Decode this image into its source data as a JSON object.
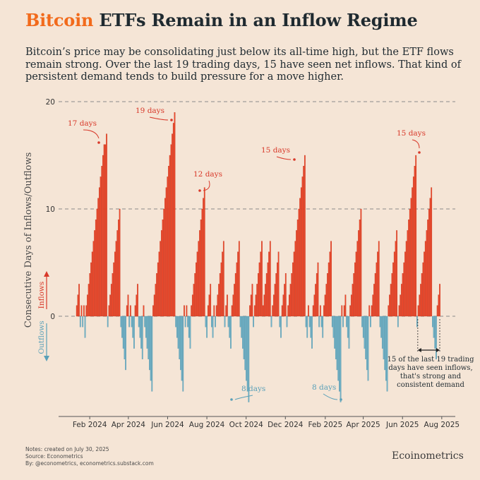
{
  "header": {
    "title_accent": "Bitcoin",
    "title_rest": " ETFs Remain in an Inflow Regime",
    "subtitle": "Bitcoin’s price may be consolidating just below its all-time high, but the ETF flows remain strong. Over the last 19 trading days, 15 have seen net inflows. That kind of persistent demand tends to build pressure for a move higher."
  },
  "footer": {
    "notes": "Notes: created on July 30, 2025",
    "source": "Source: Econometrics",
    "by": "By: @econometrics, econometrics.substack.com",
    "brand": "Ecoinometrics"
  },
  "colors": {
    "inflow": "#f0472a",
    "outflow": "#6fb2c8",
    "annotation_in": "#d8392a",
    "annotation_out": "#5aa0b8",
    "grid": "#8a8a8a",
    "title_accent": "#f26a1b"
  },
  "chart_data": {
    "type": "bar",
    "ylabel": "Consecutive Days of Inflows/Outflows",
    "ylabel_in": "Inflows",
    "ylabel_out": "Outflows",
    "ylim": [
      -8,
      20
    ],
    "yticks": [
      0,
      10,
      20
    ],
    "grid": "horizontal dashed at 10 and 20",
    "x_start": "2024-01-11",
    "x_end": "2025-07-30",
    "xticks": [
      {
        "date": "2024-02-01",
        "label": "Feb 2024"
      },
      {
        "date": "2024-04-01",
        "label": "Apr 2024"
      },
      {
        "date": "2024-06-01",
        "label": "Jun 2024"
      },
      {
        "date": "2024-08-01",
        "label": "Aug 2024"
      },
      {
        "date": "2024-10-01",
        "label": "Oct 2024"
      },
      {
        "date": "2024-12-01",
        "label": "Dec 2024"
      },
      {
        "date": "2025-02-01",
        "label": "Feb 2025"
      },
      {
        "date": "2025-04-01",
        "label": "Apr 2025"
      },
      {
        "date": "2025-06-01",
        "label": "Jun 2025"
      },
      {
        "date": "2025-08-01",
        "label": "Aug 2025"
      }
    ],
    "values": [
      1,
      2,
      3,
      -1,
      1,
      -1,
      1,
      -2,
      1,
      2,
      3,
      4,
      5,
      6,
      7,
      8,
      9,
      10,
      11,
      12,
      13,
      14,
      15,
      16,
      16,
      17,
      -1,
      1,
      2,
      3,
      4,
      5,
      6,
      7,
      8,
      9,
      10,
      -1,
      -2,
      -3,
      -4,
      -5,
      1,
      2,
      -1,
      1,
      -1,
      -2,
      -3,
      1,
      2,
      3,
      -1,
      -2,
      -3,
      -4,
      1,
      -1,
      -2,
      -3,
      -4,
      -5,
      -6,
      -7,
      1,
      2,
      3,
      4,
      5,
      6,
      7,
      8,
      9,
      10,
      11,
      12,
      13,
      14,
      15,
      16,
      17,
      18,
      19,
      -1,
      -2,
      -3,
      -4,
      -5,
      -6,
      -7,
      1,
      -1,
      1,
      -1,
      -2,
      -3,
      1,
      2,
      3,
      4,
      5,
      6,
      7,
      8,
      9,
      10,
      11,
      12,
      -1,
      -2,
      1,
      2,
      3,
      -1,
      -2,
      1,
      -1,
      1,
      2,
      3,
      4,
      5,
      6,
      7,
      -1,
      1,
      2,
      -1,
      -2,
      -3,
      1,
      2,
      3,
      4,
      5,
      6,
      7,
      -1,
      -2,
      -3,
      -4,
      -5,
      -6,
      -7,
      -8,
      1,
      2,
      3,
      -1,
      1,
      2,
      3,
      4,
      5,
      6,
      7,
      1,
      2,
      3,
      4,
      5,
      6,
      7,
      -1,
      1,
      2,
      3,
      4,
      5,
      6,
      -1,
      -2,
      1,
      2,
      3,
      4,
      -1,
      1,
      2,
      3,
      4,
      5,
      6,
      7,
      8,
      9,
      10,
      11,
      12,
      13,
      14,
      15,
      -1,
      -2,
      1,
      -1,
      -2,
      -3,
      1,
      2,
      3,
      4,
      5,
      -1,
      1,
      -1,
      -2,
      1,
      2,
      3,
      4,
      5,
      6,
      7,
      -1,
      -2,
      -3,
      -4,
      -5,
      -6,
      -7,
      -8,
      1,
      -1,
      1,
      2,
      -1,
      -2,
      -3,
      1,
      2,
      3,
      4,
      5,
      6,
      7,
      8,
      9,
      10,
      -1,
      -2,
      -3,
      -4,
      -5,
      -6,
      1,
      -1,
      1,
      2,
      3,
      4,
      5,
      6,
      7,
      -1,
      -2,
      -3,
      -4,
      -5,
      -6,
      -7,
      1,
      2,
      3,
      4,
      5,
      6,
      7,
      8,
      -1,
      1,
      2,
      3,
      4,
      5,
      6,
      7,
      8,
      9,
      10,
      11,
      12,
      13,
      14,
      15,
      -1,
      1,
      2,
      3,
      4,
      5,
      6,
      7,
      8,
      9,
      10,
      11,
      12,
      -1,
      -2,
      -3,
      -4,
      1,
      2,
      3
    ],
    "annotations": [
      {
        "text": "17 days",
        "value": 17,
        "type": "inflow"
      },
      {
        "text": "19 days",
        "value": 19,
        "type": "inflow"
      },
      {
        "text": "12 days",
        "value": 12,
        "type": "inflow"
      },
      {
        "text": "15 days",
        "value": 15,
        "type": "inflow"
      },
      {
        "text": "8 days",
        "value": -8,
        "type": "outflow"
      },
      {
        "text": "8 days",
        "value": -8,
        "type": "outflow"
      },
      {
        "text": "15 days",
        "value": 15,
        "type": "inflow"
      }
    ],
    "callout": {
      "lines": [
        "15 of the last 19 trading",
        "days have seen inflows,",
        "that's strong and",
        "consistent demand"
      ]
    }
  }
}
